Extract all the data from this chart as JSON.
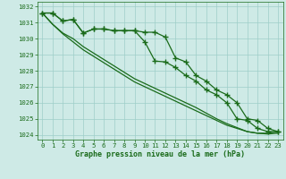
{
  "title": "Graphe pression niveau de la mer (hPa)",
  "hours": [
    0,
    1,
    2,
    3,
    4,
    5,
    6,
    7,
    8,
    9,
    10,
    11,
    12,
    13,
    14,
    15,
    16,
    17,
    18,
    19,
    20,
    21,
    22,
    23
  ],
  "line1": [
    1031.6,
    1031.6,
    1031.1,
    1031.2,
    1030.35,
    1030.6,
    1030.6,
    1030.5,
    1030.5,
    1030.5,
    1030.4,
    1030.4,
    1030.1,
    1028.8,
    1028.55,
    1027.7,
    1027.35,
    1026.8,
    1026.5,
    1026.0,
    1025.0,
    1024.9,
    1024.4,
    1024.2
  ],
  "line2": [
    1031.6,
    1031.6,
    1031.1,
    1031.2,
    1030.35,
    1030.6,
    1030.6,
    1030.5,
    1030.5,
    1030.5,
    1029.8,
    1028.6,
    1028.55,
    1028.2,
    1027.7,
    1027.35,
    1026.8,
    1026.5,
    1026.0,
    1025.0,
    1024.9,
    1024.4,
    1024.2,
    1024.2
  ],
  "line3": [
    1031.6,
    1030.9,
    1030.35,
    1030.0,
    1029.5,
    1029.1,
    1028.7,
    1028.3,
    1027.9,
    1027.5,
    1027.2,
    1026.9,
    1026.6,
    1026.3,
    1026.0,
    1025.7,
    1025.35,
    1025.0,
    1024.7,
    1024.45,
    1024.2,
    1024.1,
    1024.1,
    1024.2
  ],
  "line4": [
    1031.6,
    1030.9,
    1030.3,
    1029.8,
    1029.3,
    1028.9,
    1028.5,
    1028.1,
    1027.7,
    1027.3,
    1027.0,
    1026.7,
    1026.4,
    1026.1,
    1025.8,
    1025.5,
    1025.2,
    1024.9,
    1024.6,
    1024.4,
    1024.2,
    1024.1,
    1024.05,
    1024.1
  ],
  "ylim": [
    1023.7,
    1032.3
  ],
  "yticks": [
    1024,
    1025,
    1026,
    1027,
    1028,
    1029,
    1030,
    1031,
    1032
  ],
  "line_color": "#1a6b1a",
  "bg_color": "#ceeae6",
  "grid_color": "#9ecec8",
  "label_color": "#1a6b1a",
  "marker": "+",
  "marker_size": 4.0,
  "linewidth": 0.9,
  "tick_fontsize": 5.2,
  "xlabel_fontsize": 6.0
}
